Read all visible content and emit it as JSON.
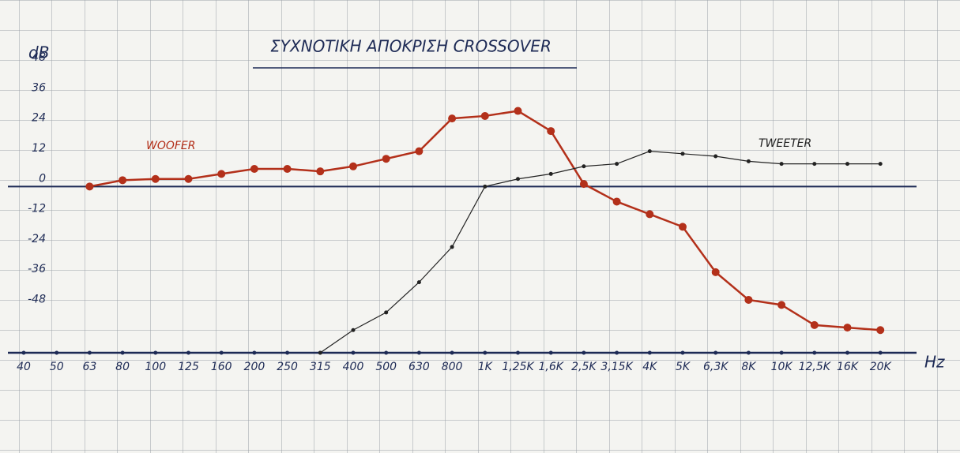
{
  "chart_data": {
    "type": "line",
    "title": "ΣΥΧΝΟΤΙΚΗ ΑΠΟΚΡΙΣΗ CROSSOVER",
    "y_label": "dB",
    "x_label": "Hz",
    "categories": [
      "40",
      "50",
      "63",
      "80",
      "100",
      "125",
      "160",
      "200",
      "250",
      "315",
      "400",
      "500",
      "630",
      "800",
      "1K",
      "1,25K",
      "1,6K",
      "2,5K",
      "3,15K",
      "4K",
      "5K",
      "6,3K",
      "8K",
      "10K",
      "12,5K",
      "16K",
      "20K"
    ],
    "series": [
      {
        "name": "WOOFER",
        "color": "#b3301a",
        "values": [
          null,
          null,
          0,
          2.5,
          3,
          3,
          5,
          7,
          7,
          6,
          8,
          11,
          14,
          27,
          28,
          30,
          22,
          1,
          -6,
          -11,
          -16,
          -34,
          -45,
          -47,
          -55,
          -56,
          -57
        ]
      },
      {
        "name": "TWEETER",
        "color": "#222222",
        "values": [
          null,
          null,
          null,
          null,
          null,
          null,
          null,
          null,
          null,
          -66,
          -57,
          -50,
          -38,
          -24,
          0,
          3,
          5,
          8,
          9,
          14,
          13,
          12,
          10,
          9,
          9,
          9,
          9
        ]
      }
    ],
    "ylim": [
      -66,
      56
    ],
    "yticks": [
      48,
      36,
      24,
      12,
      0,
      -12,
      -24,
      -36,
      -48
    ]
  }
}
